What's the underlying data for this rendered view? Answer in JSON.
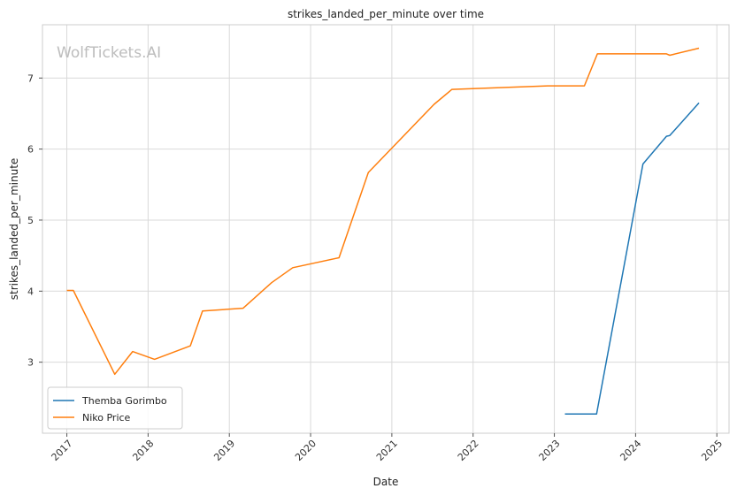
{
  "chart_data": {
    "type": "line",
    "title": "strikes_landed_per_minute over time",
    "xlabel": "Date",
    "ylabel": "strikes_landed_per_minute",
    "watermark": "WolfTickets.AI",
    "xlim": [
      2016.7,
      2025.15
    ],
    "ylim": [
      2.0,
      7.75
    ],
    "x_ticks": [
      2017,
      2018,
      2019,
      2020,
      2021,
      2022,
      2023,
      2024,
      2025
    ],
    "x_tick_labels": [
      "2017",
      "2018",
      "2019",
      "2020",
      "2021",
      "2022",
      "2023",
      "2024",
      "2025"
    ],
    "y_ticks": [
      3,
      4,
      5,
      6,
      7
    ],
    "y_tick_labels": [
      "3",
      "4",
      "5",
      "6",
      "7"
    ],
    "grid": true,
    "legend_position": "bottom-left",
    "series": [
      {
        "name": "Themba Gorimbo",
        "color": "#1f77b4",
        "points": [
          [
            2023.13,
            2.27
          ],
          [
            2023.52,
            2.27
          ],
          [
            2024.09,
            5.79
          ],
          [
            2024.38,
            6.18
          ],
          [
            2024.42,
            6.19
          ],
          [
            2024.78,
            6.65
          ]
        ]
      },
      {
        "name": "Niko Price",
        "color": "#ff7f0e",
        "points": [
          [
            2017.0,
            4.01
          ],
          [
            2017.08,
            4.01
          ],
          [
            2017.59,
            2.83
          ],
          [
            2017.81,
            3.15
          ],
          [
            2018.08,
            3.04
          ],
          [
            2018.52,
            3.23
          ],
          [
            2018.67,
            3.72
          ],
          [
            2019.17,
            3.76
          ],
          [
            2019.52,
            4.12
          ],
          [
            2019.78,
            4.33
          ],
          [
            2020.35,
            4.47
          ],
          [
            2020.71,
            5.67
          ],
          [
            2021.52,
            6.63
          ],
          [
            2021.74,
            6.84
          ],
          [
            2022.92,
            6.89
          ],
          [
            2023.37,
            6.89
          ],
          [
            2023.53,
            7.34
          ],
          [
            2024.38,
            7.34
          ],
          [
            2024.42,
            7.32
          ],
          [
            2024.78,
            7.42
          ]
        ]
      }
    ]
  }
}
